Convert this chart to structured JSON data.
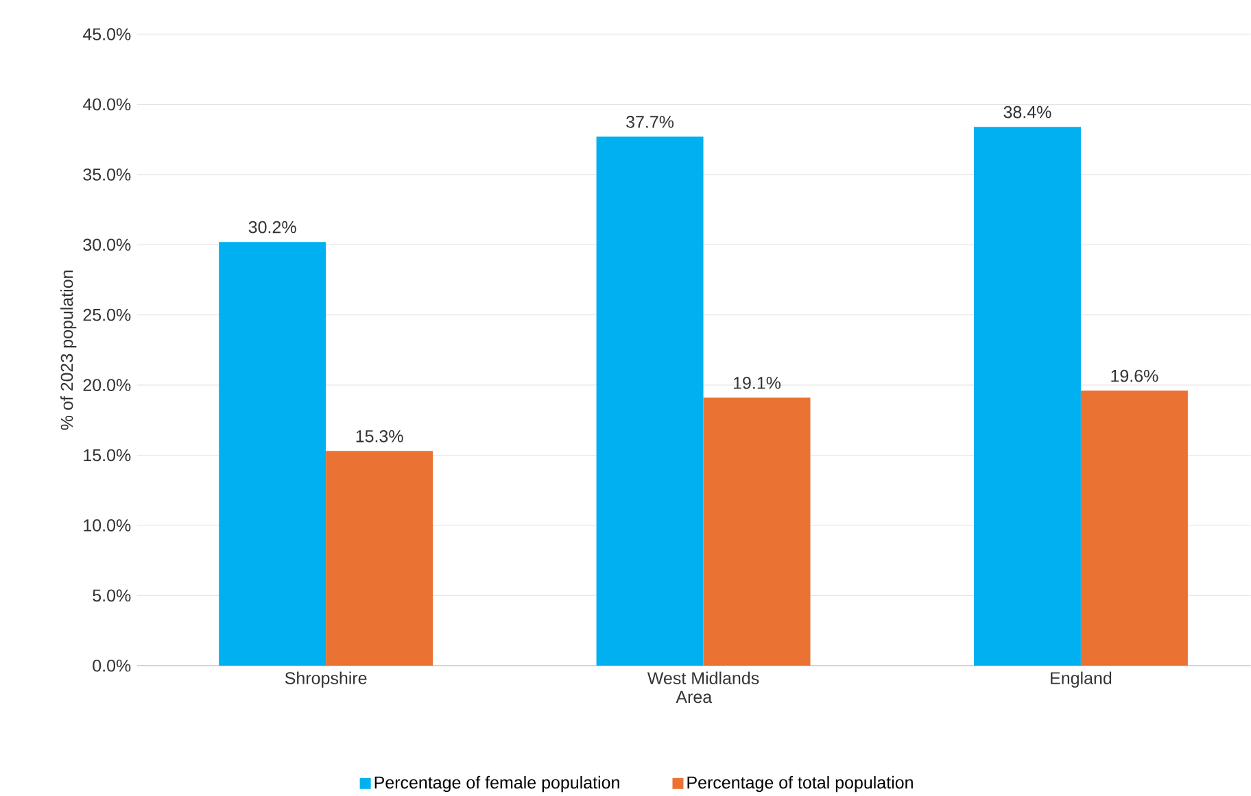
{
  "chart_data": {
    "type": "bar",
    "xlabel": "Area",
    "ylabel": "% of 2023 population",
    "categories": [
      "Shropshire",
      "West Midlands",
      "England"
    ],
    "series": [
      {
        "name": "Percentage of female population",
        "color": "#00b0f0",
        "values": [
          30.2,
          37.7,
          38.4
        ],
        "value_labels": [
          "30.2%",
          "37.7%",
          "38.4%"
        ]
      },
      {
        "name": "Percentage of total population",
        "color": "#ea7233",
        "values": [
          15.3,
          19.1,
          19.6
        ],
        "value_labels": [
          "15.3%",
          "19.1%",
          "19.6%"
        ]
      }
    ],
    "ylim": [
      0,
      45
    ],
    "yticks": [
      {
        "value": 0,
        "label": "0.0%"
      },
      {
        "value": 5,
        "label": "5.0%"
      },
      {
        "value": 10,
        "label": "10.0%"
      },
      {
        "value": 15,
        "label": "15.0%"
      },
      {
        "value": 20,
        "label": "20.0%"
      },
      {
        "value": 25,
        "label": "25.0%"
      },
      {
        "value": 30,
        "label": "30.0%"
      },
      {
        "value": 35,
        "label": "35.0%"
      },
      {
        "value": 40,
        "label": "40.0%"
      },
      {
        "value": 45,
        "label": "45.0%"
      }
    ],
    "grid": "y",
    "legend": "bottom"
  }
}
